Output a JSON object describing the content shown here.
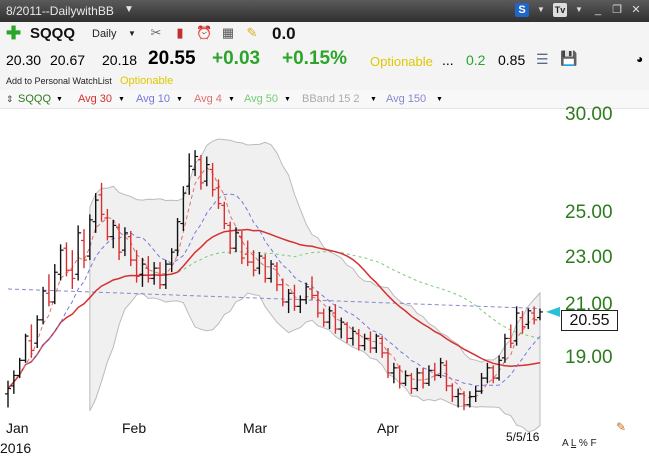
{
  "titlebar": {
    "title": "8/2011--DailywithBB"
  },
  "toolbar": {
    "symbol": "SQQQ",
    "period": "Daily",
    "value": "0.0"
  },
  "quote": {
    "open": "20.30",
    "high": "20.67",
    "low": "20.18",
    "last": "20.55",
    "change": "+0.03",
    "change_pct": "+0.15%",
    "optionable": "Optionable",
    "ellipsis": "...",
    "val1": "0.2",
    "val2": "0.85"
  },
  "optrow": {
    "add_link": "Add to Personal WatchList",
    "optionable": "Optionable"
  },
  "legend": {
    "symbol": "SQQQ",
    "avg30": "Avg 30",
    "avg10": "Avg 10",
    "avg4": "Avg 4",
    "avg50": "Avg 50",
    "bband": "BBand 15 2",
    "avg150": "Avg 150"
  },
  "colors": {
    "up_bar": "#111111",
    "down_bar": "#d83030",
    "avg30": "#d43030",
    "avg10": "#7777dd",
    "avg4": "#e07070",
    "avg50": "#77cc77",
    "avg150": "#8888cc",
    "bband": "#bbbbbb",
    "price_axis": "#2e7a1e"
  },
  "icons": [
    "add-symbol-icon",
    "tools-icon",
    "candlestick-icon",
    "alarm-icon",
    "calculator-icon",
    "notes-icon",
    "database-icon",
    "save-icon"
  ],
  "chart_data": {
    "type": "ohlc",
    "symbol": "SQQQ",
    "yaxis": {
      "scale": "log",
      "ticks": [
        30.0,
        25.0,
        23.0,
        21.0,
        19.0
      ],
      "ylim": [
        16.5,
        32.0
      ]
    },
    "xaxis": {
      "ticks": [
        "Jan",
        "Feb",
        "Mar",
        "Apr"
      ]
    },
    "year_label": "2016",
    "last_date": "5/5/16",
    "last_price": "20.55",
    "bars": [
      {
        "o": 17.2,
        "h": 17.7,
        "l": 16.7,
        "c": 17.4
      },
      {
        "o": 17.5,
        "h": 18.1,
        "l": 17.2,
        "c": 17.9
      },
      {
        "o": 17.9,
        "h": 18.6,
        "l": 17.8,
        "c": 18.5
      },
      {
        "o": 18.5,
        "h": 19.6,
        "l": 18.4,
        "c": 19.5
      },
      {
        "o": 19.3,
        "h": 20.0,
        "l": 18.6,
        "c": 18.9
      },
      {
        "o": 19.2,
        "h": 20.4,
        "l": 19.0,
        "c": 20.2
      },
      {
        "o": 20.2,
        "h": 21.7,
        "l": 20.0,
        "c": 21.5
      },
      {
        "o": 21.4,
        "h": 22.3,
        "l": 20.8,
        "c": 21.0
      },
      {
        "o": 21.0,
        "h": 22.8,
        "l": 20.9,
        "c": 22.4
      },
      {
        "o": 22.3,
        "h": 23.8,
        "l": 22.0,
        "c": 23.5
      },
      {
        "o": 23.6,
        "h": 23.9,
        "l": 22.2,
        "c": 22.5
      },
      {
        "o": 22.5,
        "h": 23.5,
        "l": 21.6,
        "c": 22.1
      },
      {
        "o": 22.3,
        "h": 24.8,
        "l": 22.0,
        "c": 24.4
      },
      {
        "o": 24.0,
        "h": 24.6,
        "l": 22.6,
        "c": 23.0
      },
      {
        "o": 23.2,
        "h": 25.4,
        "l": 23.0,
        "c": 25.1
      },
      {
        "o": 25.0,
        "h": 26.6,
        "l": 24.4,
        "c": 26.2
      },
      {
        "o": 26.5,
        "h": 27.2,
        "l": 25.0,
        "c": 25.4
      },
      {
        "o": 25.2,
        "h": 25.7,
        "l": 24.0,
        "c": 24.2
      },
      {
        "o": 24.2,
        "h": 25.1,
        "l": 23.6,
        "c": 24.8
      },
      {
        "o": 24.7,
        "h": 24.9,
        "l": 23.0,
        "c": 23.4
      },
      {
        "o": 23.5,
        "h": 24.7,
        "l": 23.2,
        "c": 24.4
      },
      {
        "o": 24.2,
        "h": 24.5,
        "l": 22.7,
        "c": 23.0
      },
      {
        "o": 23.0,
        "h": 23.5,
        "l": 21.9,
        "c": 22.2
      },
      {
        "o": 22.3,
        "h": 23.1,
        "l": 21.7,
        "c": 22.8
      },
      {
        "o": 22.6,
        "h": 23.2,
        "l": 21.9,
        "c": 22.1
      },
      {
        "o": 22.1,
        "h": 22.9,
        "l": 21.8,
        "c": 22.6
      },
      {
        "o": 22.6,
        "h": 22.9,
        "l": 21.6,
        "c": 21.8
      },
      {
        "o": 21.8,
        "h": 23.0,
        "l": 21.6,
        "c": 22.8
      },
      {
        "o": 22.8,
        "h": 23.6,
        "l": 22.4,
        "c": 23.4
      },
      {
        "o": 23.5,
        "h": 25.2,
        "l": 23.2,
        "c": 25.0
      },
      {
        "o": 24.9,
        "h": 27.0,
        "l": 24.5,
        "c": 26.6
      },
      {
        "o": 27.0,
        "h": 29.0,
        "l": 26.5,
        "c": 28.2
      },
      {
        "o": 28.0,
        "h": 29.2,
        "l": 27.6,
        "c": 28.8
      },
      {
        "o": 28.6,
        "h": 28.9,
        "l": 26.8,
        "c": 27.2
      },
      {
        "o": 27.3,
        "h": 28.8,
        "l": 27.0,
        "c": 28.3
      },
      {
        "o": 28.0,
        "h": 28.4,
        "l": 26.4,
        "c": 26.8
      },
      {
        "o": 26.9,
        "h": 27.4,
        "l": 25.7,
        "c": 26.0
      },
      {
        "o": 25.9,
        "h": 26.1,
        "l": 24.6,
        "c": 24.9
      },
      {
        "o": 24.8,
        "h": 25.0,
        "l": 23.3,
        "c": 23.6
      },
      {
        "o": 23.6,
        "h": 24.7,
        "l": 23.4,
        "c": 24.4
      },
      {
        "o": 24.2,
        "h": 24.5,
        "l": 22.8,
        "c": 23.1
      },
      {
        "o": 23.3,
        "h": 24.0,
        "l": 22.7,
        "c": 22.9
      },
      {
        "o": 22.9,
        "h": 23.5,
        "l": 22.2,
        "c": 22.5
      },
      {
        "o": 22.6,
        "h": 23.4,
        "l": 22.3,
        "c": 23.2
      },
      {
        "o": 23.1,
        "h": 23.3,
        "l": 21.9,
        "c": 22.1
      },
      {
        "o": 22.1,
        "h": 23.0,
        "l": 21.9,
        "c": 22.8
      },
      {
        "o": 22.7,
        "h": 22.9,
        "l": 21.5,
        "c": 21.8
      },
      {
        "o": 21.8,
        "h": 22.1,
        "l": 20.8,
        "c": 21.0
      },
      {
        "o": 21.0,
        "h": 21.6,
        "l": 20.5,
        "c": 21.4
      },
      {
        "o": 21.4,
        "h": 21.8,
        "l": 20.6,
        "c": 20.8
      },
      {
        "o": 20.8,
        "h": 21.3,
        "l": 20.5,
        "c": 21.1
      },
      {
        "o": 21.1,
        "h": 21.9,
        "l": 20.9,
        "c": 21.7
      },
      {
        "o": 21.6,
        "h": 22.2,
        "l": 21.1,
        "c": 21.3
      },
      {
        "o": 21.3,
        "h": 21.5,
        "l": 20.3,
        "c": 20.5
      },
      {
        "o": 20.5,
        "h": 20.7,
        "l": 19.9,
        "c": 20.1
      },
      {
        "o": 20.1,
        "h": 20.8,
        "l": 19.8,
        "c": 20.6
      },
      {
        "o": 20.5,
        "h": 20.9,
        "l": 19.6,
        "c": 19.8
      },
      {
        "o": 19.8,
        "h": 20.3,
        "l": 19.4,
        "c": 20.1
      },
      {
        "o": 20.0,
        "h": 20.1,
        "l": 19.2,
        "c": 19.4
      },
      {
        "o": 19.4,
        "h": 19.9,
        "l": 19.1,
        "c": 19.7
      },
      {
        "o": 19.6,
        "h": 19.8,
        "l": 18.9,
        "c": 19.1
      },
      {
        "o": 19.1,
        "h": 19.6,
        "l": 18.9,
        "c": 19.4
      },
      {
        "o": 19.4,
        "h": 19.7,
        "l": 18.8,
        "c": 19.0
      },
      {
        "o": 19.0,
        "h": 19.6,
        "l": 18.8,
        "c": 19.5
      },
      {
        "o": 19.4,
        "h": 19.5,
        "l": 18.6,
        "c": 18.8
      },
      {
        "o": 18.8,
        "h": 19.0,
        "l": 17.8,
        "c": 18.0
      },
      {
        "o": 18.0,
        "h": 18.4,
        "l": 17.6,
        "c": 18.2
      },
      {
        "o": 18.2,
        "h": 18.3,
        "l": 17.4,
        "c": 17.6
      },
      {
        "o": 17.6,
        "h": 18.1,
        "l": 17.5,
        "c": 17.9
      },
      {
        "o": 17.9,
        "h": 18.0,
        "l": 17.2,
        "c": 17.4
      },
      {
        "o": 17.4,
        "h": 18.2,
        "l": 17.3,
        "c": 18.0
      },
      {
        "o": 18.0,
        "h": 18.2,
        "l": 17.4,
        "c": 17.6
      },
      {
        "o": 17.6,
        "h": 18.3,
        "l": 17.5,
        "c": 18.1
      },
      {
        "o": 18.1,
        "h": 18.4,
        "l": 17.7,
        "c": 17.9
      },
      {
        "o": 17.9,
        "h": 18.6,
        "l": 17.8,
        "c": 18.4
      },
      {
        "o": 18.3,
        "h": 18.5,
        "l": 17.3,
        "c": 17.5
      },
      {
        "o": 17.5,
        "h": 17.6,
        "l": 16.9,
        "c": 17.1
      },
      {
        "o": 17.1,
        "h": 17.4,
        "l": 16.7,
        "c": 17.2
      },
      {
        "o": 17.2,
        "h": 17.3,
        "l": 16.6,
        "c": 16.8
      },
      {
        "o": 16.8,
        "h": 17.3,
        "l": 16.7,
        "c": 17.1
      },
      {
        "o": 17.1,
        "h": 17.5,
        "l": 16.9,
        "c": 17.3
      },
      {
        "o": 17.3,
        "h": 18.0,
        "l": 17.2,
        "c": 17.8
      },
      {
        "o": 17.8,
        "h": 18.4,
        "l": 17.6,
        "c": 18.2
      },
      {
        "o": 18.2,
        "h": 18.3,
        "l": 17.6,
        "c": 17.8
      },
      {
        "o": 17.8,
        "h": 18.7,
        "l": 17.7,
        "c": 18.5
      },
      {
        "o": 18.6,
        "h": 19.6,
        "l": 18.4,
        "c": 19.4
      },
      {
        "o": 19.4,
        "h": 20.0,
        "l": 19.0,
        "c": 19.2
      },
      {
        "o": 19.3,
        "h": 20.8,
        "l": 19.1,
        "c": 20.5
      },
      {
        "o": 20.3,
        "h": 20.6,
        "l": 19.6,
        "c": 19.9
      },
      {
        "o": 20.0,
        "h": 20.7,
        "l": 19.8,
        "c": 20.6
      },
      {
        "o": 20.5,
        "h": 20.8,
        "l": 20.0,
        "c": 20.2
      },
      {
        "o": 20.3,
        "h": 20.7,
        "l": 20.18,
        "c": 20.55
      }
    ]
  }
}
